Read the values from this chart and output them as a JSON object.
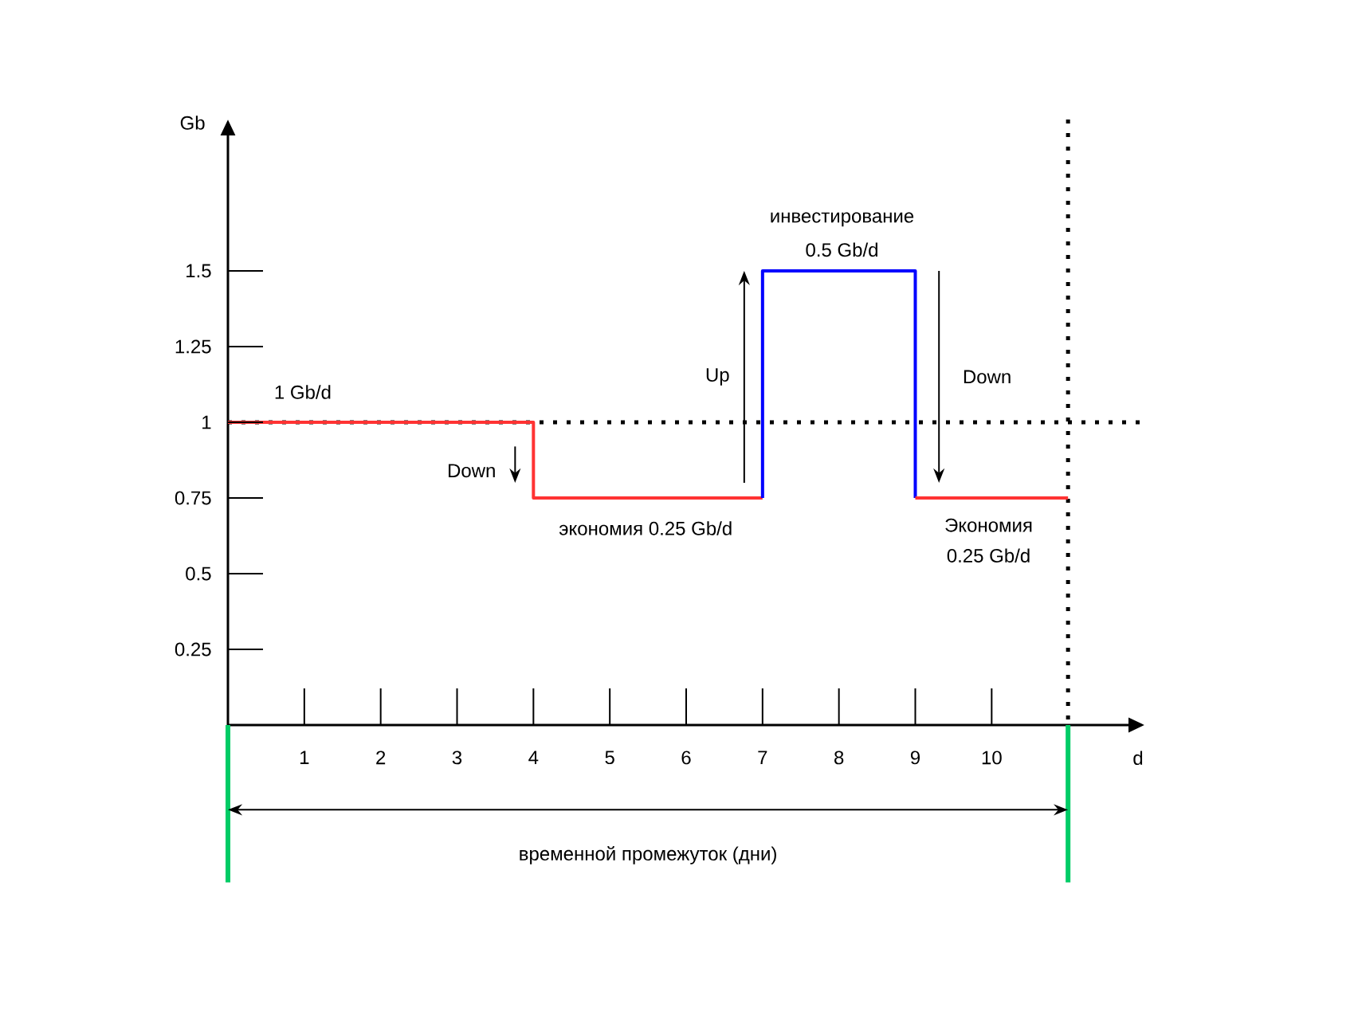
{
  "chart_data": {
    "type": "step",
    "xlabel": "d",
    "ylabel": "Gb",
    "xlim": [
      0,
      12
    ],
    "ylim": [
      0,
      2
    ],
    "xticks": [
      1,
      2,
      3,
      4,
      5,
      6,
      7,
      8,
      9,
      10
    ],
    "yticks": [
      0.25,
      0.5,
      0.75,
      1,
      1.25,
      1.5
    ],
    "series": [
      {
        "color": "#ff3333",
        "x": [
          0,
          4,
          7
        ],
        "values": [
          1,
          0.75,
          0.75
        ]
      },
      {
        "type": "line",
        "color": "#0000ff",
        "x": [
          7,
          7,
          9,
          9
        ],
        "values": [
          0.75,
          1.5,
          1.5,
          0.75
        ]
      },
      {
        "color": "#ff3333",
        "x": [
          9,
          11
        ],
        "values": [
          0.75,
          0.75
        ]
      }
    ],
    "ref_lines": [
      {
        "axis": "y",
        "value": 1,
        "color": "#000000",
        "line_style": "dotted"
      },
      {
        "axis": "x",
        "value": 11,
        "color": "#000000",
        "line_style": "dotted"
      }
    ],
    "annotations": [
      "1 Gb/d",
      "Down",
      "экономия 0.25 Gb/d",
      "Up",
      "инвестирование",
      "0.5 Gb/d",
      "Down",
      "Экономия",
      "0.25 Gb/d",
      "временной промежуток (дни)"
    ]
  }
}
